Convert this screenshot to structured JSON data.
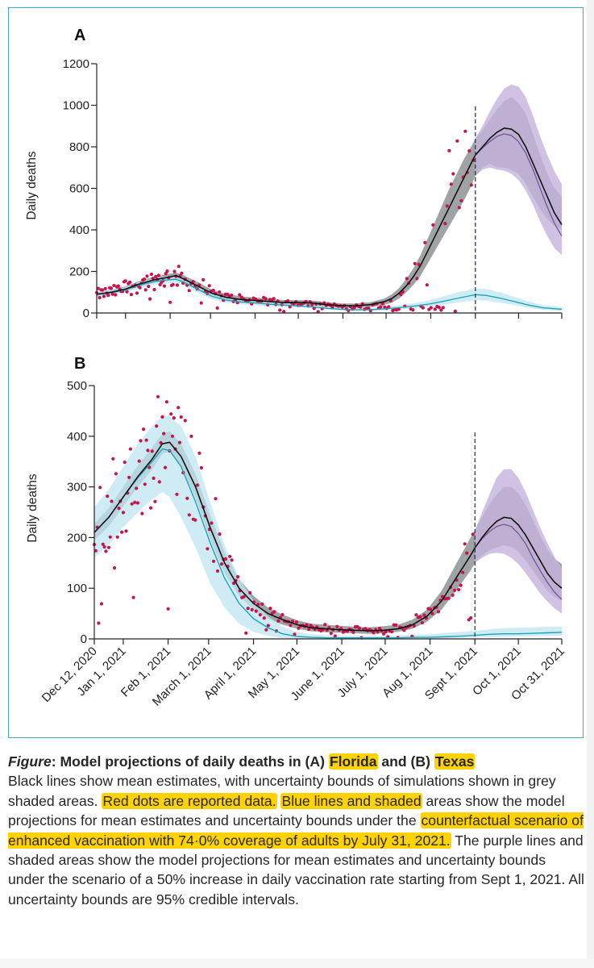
{
  "colors": {
    "frame": "#4aa7c9",
    "highlight": "#ffd200",
    "mean": "#111111",
    "grey_band": "#8e9397",
    "blue_line": "#1ea3b9",
    "blue_band": "#bfe6f1",
    "purple_line": "#7a5a9a",
    "purple_band": "#c6b3dd",
    "dots": "#c8134a",
    "axis": "#222222"
  },
  "caption": {
    "label": "Figure",
    "title_a": ": Model projections of daily deaths in (A) ",
    "title_fl": "Florida",
    "title_b": " and (B) ",
    "title_tx": "Texas",
    "s1": "Black lines show mean estimates, with uncertainty bounds of simulations shown in grey shaded areas. ",
    "s2": "Red dots are reported data.",
    "s3": " ",
    "s4": "Blue lines and shaded",
    "s5": " areas show the model projections for mean estimates and uncertainty bounds under the ",
    "s6": "counterfactual scenario of enhanced vaccination with 74·0% coverage of adults by July 31, 2021.",
    "s7": " The purple lines and shaded areas show the model projections for mean estimates and uncertainty bounds under the scenario of a 50% increase in daily vaccination rate starting from Sept 1, 2021. All uncertainty bounds are 95% credible intervals."
  },
  "chart_data": [
    {
      "panel": "A",
      "region": "Florida",
      "type": "line",
      "ylabel": "Daily deaths",
      "ylim": [
        0,
        1200
      ],
      "yticks": [
        0,
        200,
        400,
        600,
        800,
        1000,
        1200
      ],
      "x_days": [
        0,
        304
      ],
      "x_tick_labels": [
        "Dec 12, 2020",
        "Jan 1, 2021",
        "Feb 1, 2021",
        "March 1, 2021",
        "April 1, 2021",
        "May 1, 2021",
        "June 1, 2021",
        "July 1, 2021",
        "Aug 1, 2021",
        "Sept 1, 2021",
        "Oct 1, 2021",
        "Oct 31, 2021"
      ],
      "x_tick_days": [
        0,
        20,
        51,
        79,
        110,
        140,
        171,
        201,
        232,
        263,
        293,
        323
      ],
      "projection_start_day": 263,
      "series": [
        {
          "name": "Mean estimate",
          "color": "black",
          "x": [
            0,
            10,
            20,
            30,
            40,
            50,
            55,
            60,
            70,
            80,
            90,
            100,
            110,
            120,
            130,
            140,
            150,
            160,
            170,
            180,
            190,
            200,
            205,
            210,
            215,
            220,
            225,
            230,
            235,
            240,
            245,
            250,
            255,
            260,
            263,
            268,
            273,
            278,
            283,
            288,
            293,
            298,
            303,
            308,
            313,
            318,
            323
          ],
          "values": [
            90,
            100,
            115,
            140,
            160,
            172,
            180,
            165,
            130,
            95,
            75,
            65,
            60,
            55,
            50,
            50,
            48,
            40,
            35,
            35,
            40,
            55,
            70,
            95,
            130,
            175,
            230,
            300,
            370,
            440,
            510,
            580,
            650,
            720,
            760,
            800,
            840,
            870,
            890,
            885,
            860,
            800,
            720,
            640,
            560,
            480,
            425
          ],
          "lower": [
            80,
            90,
            105,
            125,
            145,
            155,
            160,
            145,
            110,
            78,
            60,
            52,
            48,
            43,
            40,
            40,
            38,
            30,
            25,
            25,
            30,
            40,
            50,
            70,
            100,
            135,
            180,
            240,
            300,
            360,
            420,
            480,
            540,
            610,
            660,
            700,
            720,
            700,
            700,
            690,
            670,
            620,
            560,
            500,
            450,
            420,
            400
          ],
          "upper": [
            100,
            112,
            128,
            155,
            175,
            188,
            195,
            182,
            150,
            112,
            90,
            80,
            74,
            68,
            62,
            62,
            60,
            52,
            46,
            46,
            52,
            70,
            90,
            120,
            165,
            215,
            280,
            360,
            440,
            520,
            600,
            670,
            740,
            800,
            840,
            880,
            930,
            980,
            1020,
            1040,
            1010,
            960,
            860,
            760,
            670,
            600,
            560
          ]
        },
        {
          "name": "Enhanced vaccination (74.0%)",
          "color": "blue",
          "x": [
            0,
            10,
            20,
            30,
            40,
            50,
            55,
            60,
            70,
            80,
            90,
            100,
            110,
            120,
            130,
            140,
            150,
            160,
            170,
            180,
            190,
            200,
            210,
            220,
            230,
            240,
            250,
            263,
            270,
            280,
            290,
            300,
            310,
            323
          ],
          "values": [
            90,
            98,
            112,
            135,
            152,
            160,
            162,
            150,
            115,
            80,
            62,
            53,
            48,
            42,
            38,
            34,
            30,
            22,
            18,
            15,
            16,
            20,
            26,
            33,
            42,
            55,
            70,
            88,
            85,
            72,
            55,
            38,
            25,
            18
          ],
          "lower": [
            80,
            88,
            100,
            120,
            136,
            142,
            145,
            132,
            98,
            66,
            50,
            42,
            38,
            33,
            29,
            26,
            22,
            16,
            12,
            10,
            10,
            13,
            17,
            22,
            29,
            38,
            50,
            62,
            60,
            50,
            38,
            25,
            15,
            10
          ],
          "upper": [
            100,
            110,
            125,
            150,
            168,
            178,
            180,
            168,
            132,
            96,
            76,
            66,
            60,
            53,
            48,
            44,
            40,
            30,
            25,
            22,
            24,
            30,
            38,
            47,
            60,
            78,
            98,
            118,
            116,
            100,
            78,
            55,
            38,
            28
          ]
        },
        {
          "name": "50% increase in daily vaccination rate",
          "color": "purple",
          "x": [
            263,
            268,
            273,
            278,
            283,
            288,
            293,
            298,
            303,
            308,
            313,
            318,
            323
          ],
          "values": [
            760,
            795,
            825,
            850,
            862,
            855,
            825,
            770,
            690,
            600,
            510,
            430,
            370
          ],
          "lower": [
            660,
            690,
            700,
            690,
            685,
            670,
            640,
            590,
            520,
            440,
            370,
            310,
            280
          ],
          "upper": [
            840,
            900,
            970,
            1030,
            1080,
            1100,
            1090,
            1040,
            950,
            850,
            760,
            680,
            620
          ]
        }
      ],
      "reported_data_note": "Red dots are reported daily deaths (approximate, read from figure)"
    },
    {
      "panel": "B",
      "region": "Texas",
      "type": "line",
      "ylabel": "Daily deaths",
      "ylim": [
        0,
        500
      ],
      "yticks": [
        0,
        100,
        200,
        300,
        400,
        500
      ],
      "x_tick_labels": [
        "Dec 12, 2020",
        "Jan 1, 2021",
        "Feb 1, 2021",
        "March 1, 2021",
        "April 1, 2021",
        "May 1, 2021",
        "June 1, 2021",
        "July 1, 2021",
        "Aug 1, 2021",
        "Sept 1, 2021",
        "Oct 1, 2021",
        "Oct 31, 2021"
      ],
      "x_tick_days": [
        0,
        20,
        51,
        79,
        110,
        140,
        171,
        201,
        232,
        263,
        293,
        323
      ],
      "projection_start_day": 263,
      "series": [
        {
          "name": "Mean estimate",
          "color": "black",
          "x": [
            0,
            10,
            20,
            30,
            40,
            47,
            52,
            60,
            70,
            80,
            90,
            100,
            110,
            120,
            130,
            140,
            150,
            160,
            170,
            180,
            190,
            200,
            210,
            220,
            230,
            240,
            250,
            260,
            263,
            268,
            273,
            278,
            283,
            288,
            293,
            298,
            303,
            308,
            313,
            318,
            323
          ],
          "values": [
            210,
            240,
            280,
            320,
            355,
            385,
            388,
            360,
            300,
            220,
            150,
            100,
            70,
            50,
            38,
            28,
            22,
            20,
            18,
            17,
            16,
            17,
            20,
            28,
            45,
            75,
            120,
            165,
            180,
            200,
            218,
            232,
            240,
            238,
            225,
            205,
            180,
            155,
            130,
            112,
            100
          ],
          "lower": [
            195,
            222,
            262,
            300,
            335,
            365,
            370,
            340,
            278,
            198,
            130,
            85,
            58,
            40,
            28,
            20,
            15,
            13,
            12,
            11,
            10,
            11,
            14,
            20,
            34,
            58,
            95,
            135,
            150,
            165,
            175,
            180,
            185,
            182,
            172,
            155,
            135,
            115,
            95,
            82,
            75
          ],
          "upper": [
            228,
            258,
            300,
            342,
            378,
            405,
            410,
            385,
            325,
            245,
            172,
            118,
            85,
            62,
            48,
            37,
            30,
            28,
            26,
            24,
            23,
            25,
            28,
            38,
            58,
            95,
            148,
            200,
            215,
            240,
            265,
            285,
            300,
            300,
            288,
            265,
            235,
            205,
            178,
            158,
            148
          ]
        },
        {
          "name": "Enhanced vaccination (74.0%)",
          "color": "blue",
          "x": [
            0,
            10,
            20,
            30,
            40,
            47,
            52,
            60,
            70,
            80,
            90,
            100,
            110,
            120,
            130,
            140,
            150,
            160,
            170,
            180,
            190,
            200,
            210,
            220,
            230,
            240,
            250,
            263,
            273,
            283,
            293,
            303,
            313,
            323
          ],
          "values": [
            210,
            240,
            280,
            318,
            350,
            375,
            372,
            340,
            270,
            190,
            120,
            70,
            40,
            22,
            10,
            5,
            3,
            2,
            2,
            2,
            2,
            2,
            2,
            3,
            3,
            4,
            5,
            7,
            9,
            10,
            10,
            11,
            12,
            13
          ],
          "lower": [
            160,
            185,
            220,
            250,
            275,
            290,
            280,
            240,
            180,
            110,
            62,
            30,
            14,
            6,
            2,
            1,
            0,
            0,
            0,
            0,
            0,
            0,
            0,
            0,
            1,
            1,
            2,
            3,
            4,
            4,
            5,
            5,
            6,
            6
          ],
          "upper": [
            260,
            295,
            340,
            385,
            420,
            440,
            440,
            420,
            360,
            270,
            185,
            120,
            75,
            45,
            24,
            14,
            9,
            7,
            6,
            6,
            6,
            6,
            7,
            8,
            9,
            11,
            13,
            16,
            19,
            21,
            22,
            23,
            24,
            24
          ]
        },
        {
          "name": "50% increase in daily vaccination rate",
          "color": "purple",
          "x": [
            263,
            268,
            273,
            278,
            283,
            288,
            293,
            298,
            303,
            308,
            313,
            318,
            323
          ],
          "values": [
            180,
            198,
            212,
            222,
            226,
            222,
            208,
            188,
            160,
            135,
            112,
            92,
            78
          ],
          "lower": [
            150,
            160,
            168,
            170,
            168,
            160,
            148,
            130,
            110,
            90,
            74,
            60,
            50
          ],
          "upper": [
            215,
            250,
            285,
            318,
            335,
            335,
            318,
            290,
            255,
            220,
            190,
            162,
            140
          ]
        }
      ],
      "reported_data_note": "Red dots are reported daily deaths (approximate, read from figure)"
    }
  ]
}
